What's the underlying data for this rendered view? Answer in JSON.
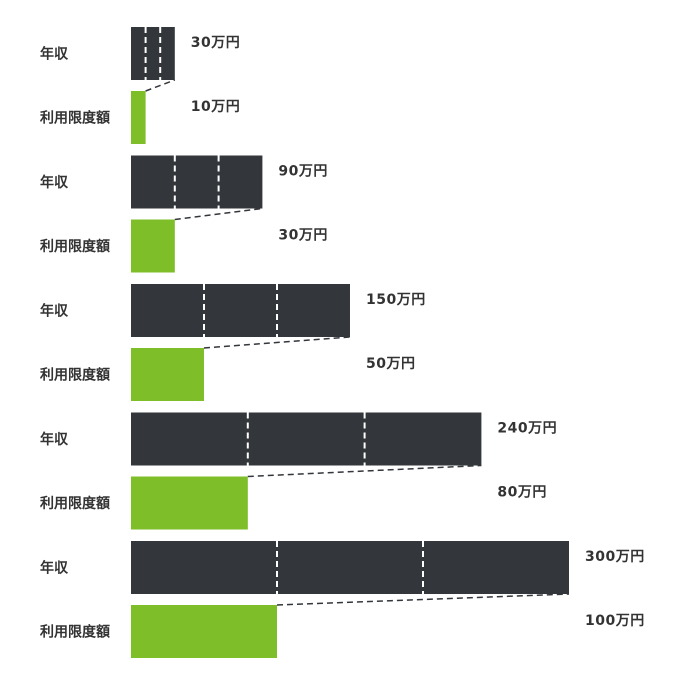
{
  "chart_data": {
    "type": "bar",
    "series": [
      {
        "label": "年収",
        "color": "#33363a",
        "values": [
          30,
          90,
          150,
          240,
          300
        ],
        "value_labels": [
          "30万円",
          "90万円",
          "150万円",
          "240万円",
          "300万円"
        ]
      },
      {
        "label": "利用限度額",
        "color": "#7dbe29",
        "values": [
          10,
          30,
          50,
          80,
          100
        ],
        "value_labels": [
          "10万円",
          "30万円",
          "50万円",
          "80万円",
          "100万円"
        ]
      }
    ],
    "ratio_divisions": 3
  }
}
